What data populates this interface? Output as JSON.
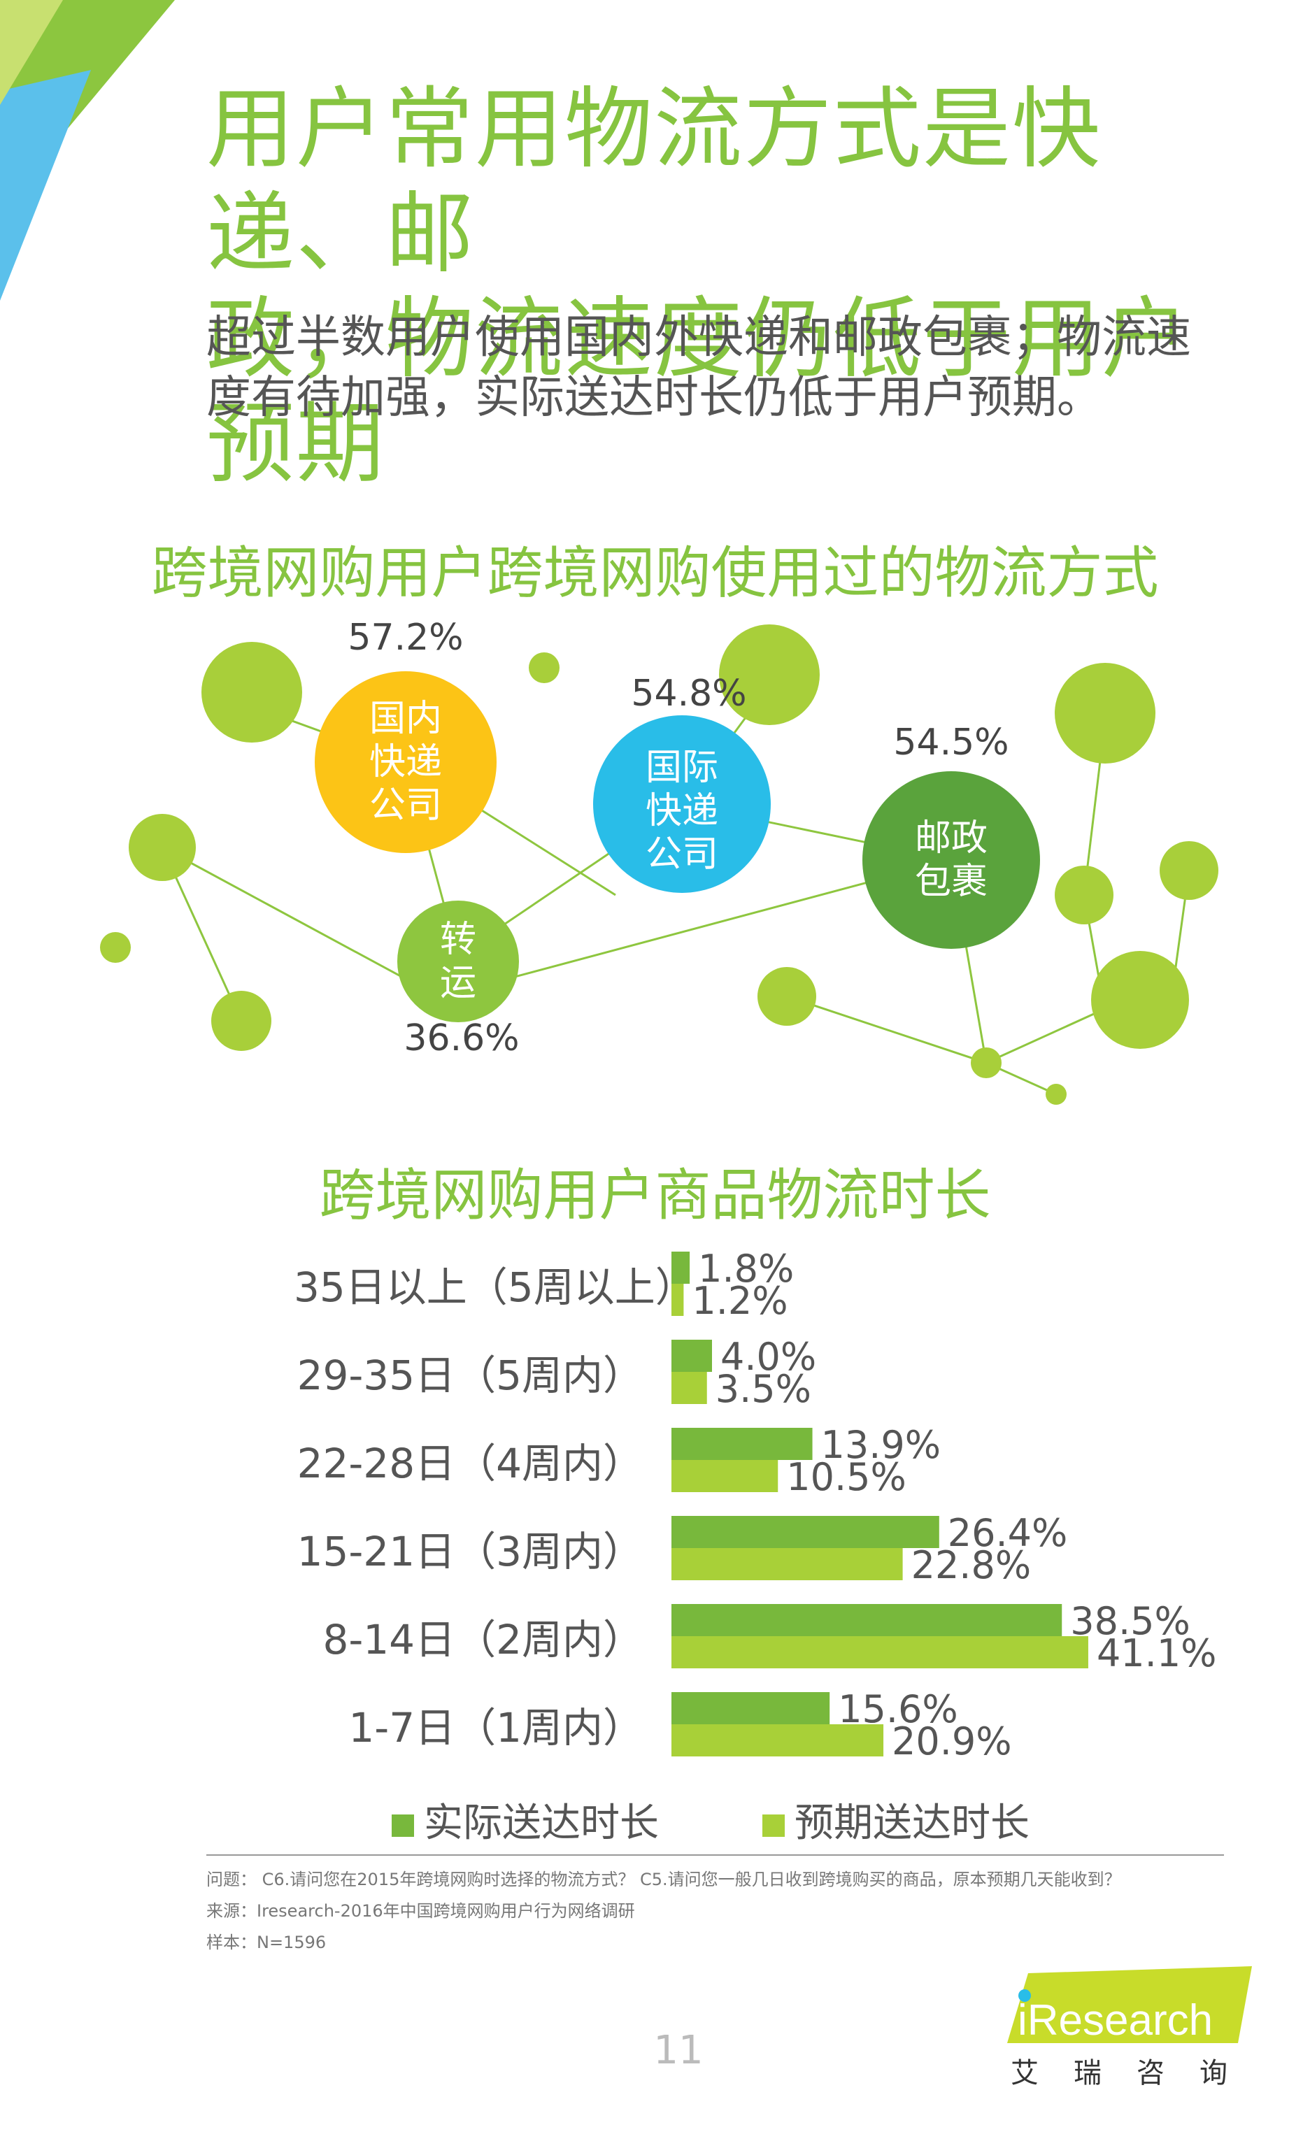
{
  "header": {
    "title_line1": "用户常用物流方式是快递、邮",
    "title_line2": "政，物流速度仍低于用户预期",
    "subtitle_line1": "超过半数用户使用国内外快递和邮政包裹；物流速",
    "subtitle_line2": "度有待加强，实际送达时长仍低于用户预期。"
  },
  "colors": {
    "brand_green": "#86c440",
    "domestic_yellow": "#fcc416",
    "international_blue": "#29bde8",
    "postal_green": "#5aa33c",
    "transship_green": "#8ec63f",
    "decor_green": "#a8cf3a",
    "actual_bar": "#78b83c",
    "expected_bar": "#a8d038"
  },
  "bubble_chart": {
    "title": "跨境网购用户跨境网购使用过的物流方式",
    "items": [
      {
        "label_lines": [
          "国内",
          "快递",
          "公司"
        ],
        "value": "57.2%"
      },
      {
        "label_lines": [
          "国际",
          "快递",
          "公司"
        ],
        "value": "54.8%"
      },
      {
        "label_lines": [
          "邮政",
          "包裹"
        ],
        "value": "54.5%"
      },
      {
        "label_lines": [
          "转",
          "运"
        ],
        "value": "36.6%"
      }
    ]
  },
  "chart_data": {
    "type": "bar",
    "title": "跨境网购用户商品物流时长",
    "orientation": "horizontal",
    "categories": [
      "35日以上（5周以上）",
      "29-35日（5周内）",
      "22-28日（4周内）",
      "15-21日（3周内）",
      "8-14日（2周内）",
      "1-7日（1周内）"
    ],
    "series": [
      {
        "name": "实际送达时长",
        "values": [
          1.8,
          4.0,
          13.9,
          26.4,
          38.5,
          15.6
        ],
        "labels": [
          "1.8%",
          "4.0%",
          "13.9%",
          "26.4%",
          "38.5%",
          "15.6%"
        ]
      },
      {
        "name": "预期送达时长",
        "values": [
          1.2,
          3.5,
          10.5,
          22.8,
          41.1,
          20.9
        ],
        "labels": [
          "1.2%",
          "3.5%",
          "10.5%",
          "22.8%",
          "41.1%",
          "20.9%"
        ]
      }
    ],
    "legend": "bottom"
  },
  "footer": {
    "note1": "问题：  C6.请问您在2015年跨境网购时选择的物流方式？   C5.请问您一般几日收到跨境购买的商品，原本预期几天能收到？",
    "note2": "来源：Iresearch-2016年中国跨境网购用户行为网络调研",
    "note3": "样本：N=1596",
    "page_number": "11",
    "logo_text": "iResearch",
    "logo_cn": "艾瑞咨询"
  }
}
